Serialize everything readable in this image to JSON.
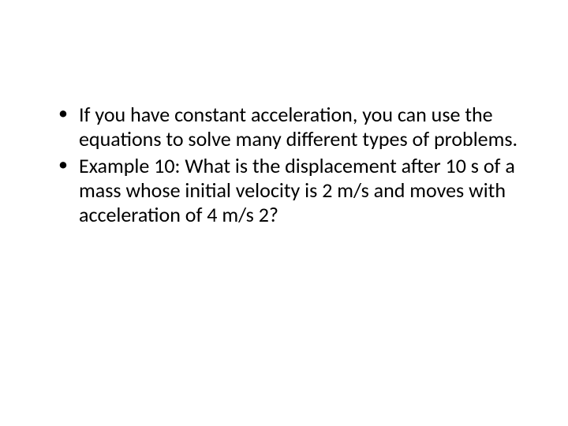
{
  "slide": {
    "background_color": "#ffffff",
    "text_color": "#000000",
    "font_family": "Calibri",
    "bullets": [
      {
        "text": "If you have constant acceleration, you can use the equations to solve many different types of problems."
      },
      {
        "text": "Example 10: What is the displacement after 10 s of a mass whose initial velocity is 2 m/s and moves with acceleration of 4 m/s 2?"
      }
    ],
    "bullet_fontsize": 26,
    "bullet_marker": "•",
    "line_height": 1.18
  }
}
